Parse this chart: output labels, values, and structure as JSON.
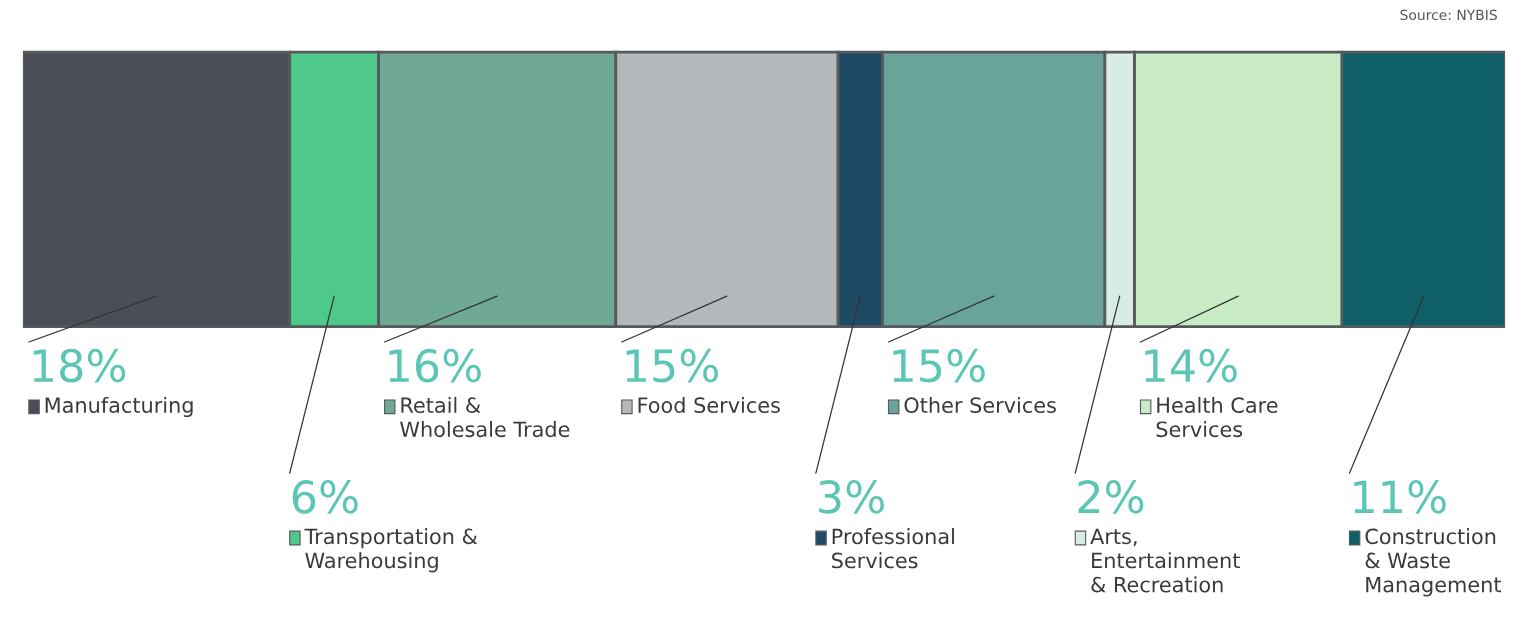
{
  "chart_data": {
    "type": "bar",
    "orientation": "horizontal",
    "stacked": true,
    "categories": [
      null
    ],
    "xlim": [
      0,
      100
    ],
    "tick_labels": false,
    "legend": "bottom",
    "series": [
      {
        "name": "Manufacturing",
        "color": "#4a4f55",
        "values": [
          18
        ],
        "value_labels": [
          "18%"
        ]
      },
      {
        "name": "Transportation &\nWarehousing",
        "color": "#4fc98a",
        "values": [
          6
        ],
        "value_labels": [
          "6%"
        ]
      },
      {
        "name": "Retail &\nWholesale Trade",
        "color": "#6fa893",
        "values": [
          16
        ],
        "value_labels": [
          "16%"
        ]
      },
      {
        "name": "Food Services",
        "color": "#b4b8ba",
        "values": [
          15
        ],
        "value_labels": [
          "15%"
        ]
      },
      {
        "name": "Professional\nServices",
        "color": "#1e4a66",
        "values": [
          3
        ],
        "value_labels": [
          "3%"
        ]
      },
      {
        "name": "Other Services",
        "color": "#6aa39a",
        "values": [
          15
        ],
        "value_labels": [
          "15%"
        ]
      },
      {
        "name": "Arts,\nEntertainment\n& Recreation",
        "color": "#d8ece6",
        "values": [
          2
        ],
        "value_labels": [
          "2%"
        ]
      },
      {
        "name": "Health Care\nServices",
        "color": "#c9ebc6",
        "values": [
          14
        ],
        "value_labels": [
          "14%"
        ]
      },
      {
        "name": "Construction\n& Waste\nManagement",
        "color": "#0f5f68",
        "values": [
          11
        ],
        "value_labels": [
          "11%"
        ]
      }
    ],
    "annotations": [
      "Source: NYBIS"
    ]
  }
}
